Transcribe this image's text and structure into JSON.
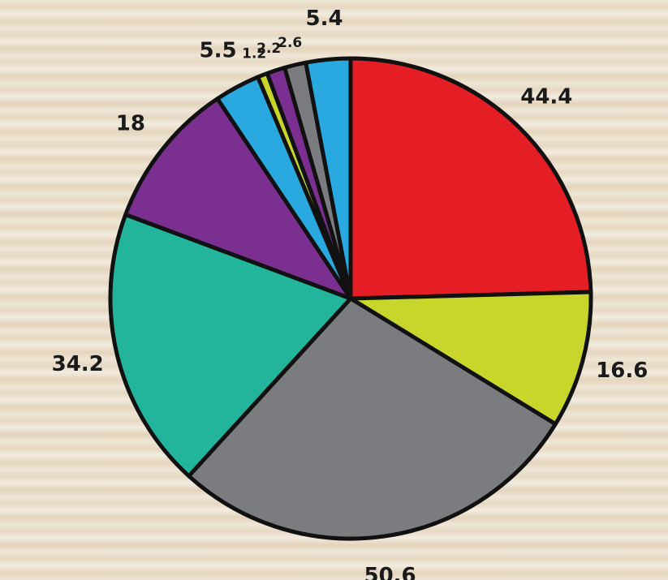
{
  "chart_data": {
    "type": "pie",
    "categories": [
      null,
      null,
      null,
      null,
      null,
      null,
      null,
      null,
      null,
      null
    ],
    "values": [
      44.4,
      16.6,
      50.6,
      34.2,
      18,
      5.5,
      1.2,
      2.2,
      2.6,
      5.4
    ],
    "colors": [
      "#e51e25",
      "#c8d62b",
      "#7b7c80",
      "#22b59c",
      "#7a2f91",
      "#29a9e0",
      "#c8d62b",
      "#7a2f91",
      "#7b7c80",
      "#29a9e0"
    ]
  }
}
